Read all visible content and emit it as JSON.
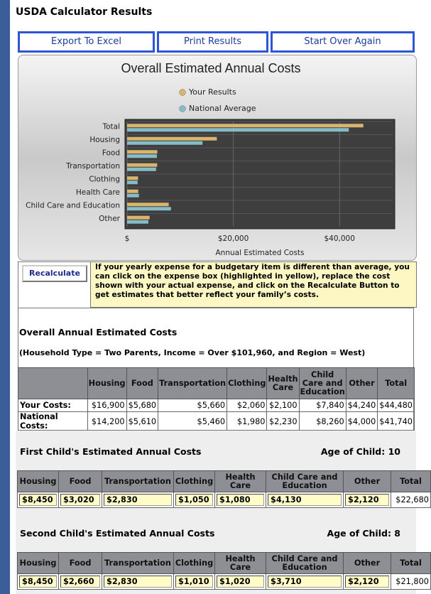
{
  "header": {
    "title": "USDA Calculator Results"
  },
  "buttons": [
    "Export To Excel",
    "Print Results",
    "Start Over Again"
  ],
  "chart_data": {
    "type": "bar",
    "orientation": "horizontal",
    "title": "Overall Estimated Annual Costs",
    "categories": [
      "Total",
      "Housing",
      "Food",
      "Transportation",
      "Clothing",
      "Health Care",
      "Child Care and Education",
      "Other"
    ],
    "series": [
      {
        "name": "Your Results",
        "color": "#d9b46c",
        "values": [
          44480,
          16900,
          5680,
          5660,
          2060,
          2100,
          7840,
          4240
        ]
      },
      {
        "name": "National Average",
        "color": "#86bcc8",
        "values": [
          41740,
          14200,
          5610,
          5460,
          1980,
          2230,
          8260,
          4000
        ]
      }
    ],
    "xlabel": "Annual Estimated Costs",
    "xlim": [
      0,
      50000
    ],
    "xticks": [
      {
        "value": 0,
        "label": "$"
      },
      {
        "value": 20000,
        "label": "$20,000"
      },
      {
        "value": 40000,
        "label": "$40,000"
      }
    ],
    "grid": true
  },
  "recalculate": {
    "button": "Recalculate",
    "note": "If your yearly expense for a budgetary item is different than average, you can click on the expense box (highlighted in yellow), replace the cost shown with your actual expense, and click on the Recalculate Button to get estimates that better reflect your family’s costs."
  },
  "overall": {
    "title": "Overall Annual Estimated Costs",
    "subtitle": "(Household Type = Two Parents, Income = Over $101,960, and Region = West)",
    "columns": [
      "Housing",
      "Food",
      "Transportation",
      "Clothing",
      "Health Care",
      "Child Care and Education",
      "Other",
      "Total"
    ],
    "rows": [
      [
        "Your Costs:",
        "$16,900",
        "$5,680",
        "$5,660",
        "$2,060",
        "$2,100",
        "$7,840",
        "$4,240",
        "$44,480"
      ],
      [
        "National Costs:",
        "$14,200",
        "$5,610",
        "$5,460",
        "$1,980",
        "$2,230",
        "$8,260",
        "$4,000",
        "$41,740"
      ]
    ]
  },
  "children": [
    {
      "title": "First Child's Estimated Annual Costs",
      "age": "Age of Child: 10",
      "columns": [
        "Housing",
        "Food",
        "Transportation",
        "Clothing",
        "Health Care",
        "Child Care and Education",
        "Other",
        "Total"
      ],
      "values": [
        "$8,450",
        "$3,020",
        "$2,830",
        "$1,050",
        "$1,080",
        "$4,130",
        "$2,120",
        "$22,680"
      ]
    },
    {
      "title": "Second Child's Estimated Annual Costs",
      "age": "Age of Child: 8",
      "columns": [
        "Housing",
        "Food",
        "Transportation",
        "Clothing",
        "Health Care",
        "Child Care and Education",
        "Other",
        "Total"
      ],
      "values": [
        "$8,450",
        "$2,660",
        "$2,830",
        "$1,010",
        "$1,020",
        "$3,710",
        "$2,120",
        "$21,800"
      ]
    }
  ]
}
